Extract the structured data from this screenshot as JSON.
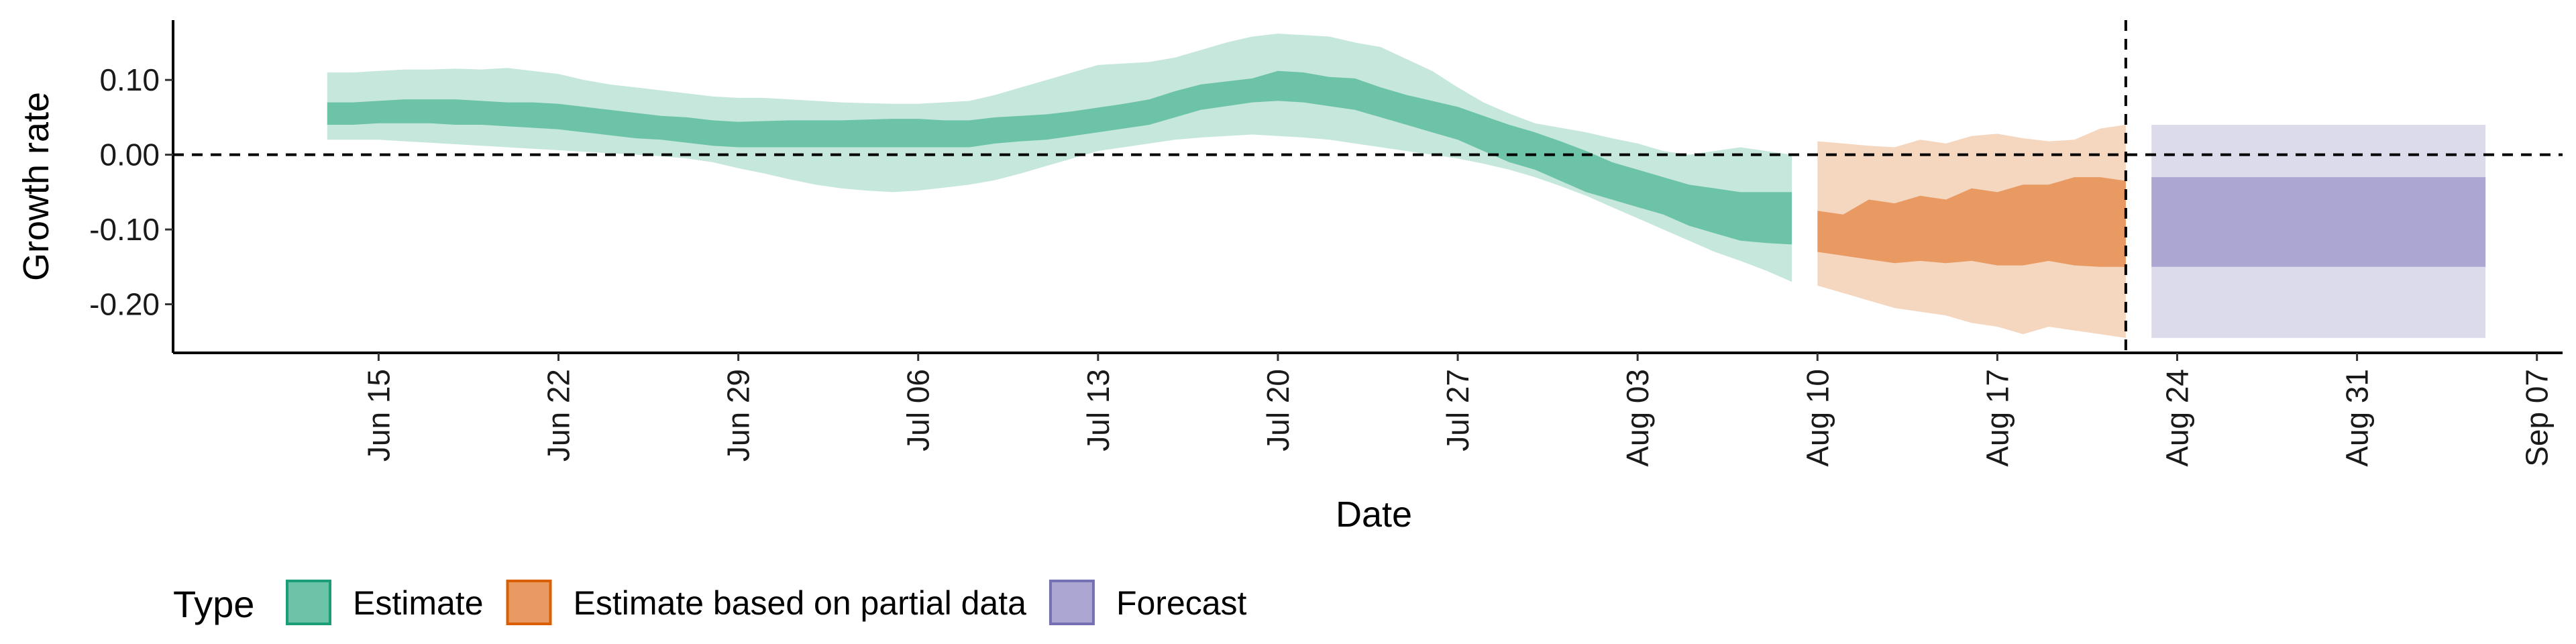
{
  "chart_data": {
    "type": "area",
    "xlabel": "Date",
    "ylabel": "Growth rate",
    "ylim": [
      -0.265,
      0.18
    ],
    "xlim": [
      "2020-06-07",
      "2020-09-08"
    ],
    "y_ticks": [
      0.1,
      0.0,
      -0.1,
      -0.2
    ],
    "y_tick_labels": [
      "0.10",
      "0.00",
      "-0.10",
      "-0.20"
    ],
    "x_ticks": [
      "2020-06-15",
      "2020-06-22",
      "2020-06-29",
      "2020-07-06",
      "2020-07-13",
      "2020-07-20",
      "2020-07-27",
      "2020-08-03",
      "2020-08-10",
      "2020-08-17",
      "2020-08-24",
      "2020-08-31",
      "2020-09-07"
    ],
    "x_tick_labels": [
      "Jun 15",
      "Jun 22",
      "Jun 29",
      "Jul 06",
      "Jul 13",
      "Jul 20",
      "Jul 27",
      "Aug 03",
      "Aug 10",
      "Aug 17",
      "Aug 24",
      "Aug 31",
      "Sep 07"
    ],
    "hline": 0.0,
    "vline": "2020-08-22",
    "grid": false,
    "legend": {
      "title": "Type",
      "position": "bottom",
      "entries": [
        {
          "label": "Estimate",
          "color": "#1b9e77"
        },
        {
          "label": "Estimate based on partial data",
          "color": "#d95f02"
        },
        {
          "label": "Forecast",
          "color": "#7570b3"
        }
      ]
    },
    "series": [
      {
        "name": "Estimate",
        "color": "#1b9e77",
        "fill": "#6cc3a7",
        "fill_outer": "#c6e7dc",
        "x": [
          "2020-06-13",
          "2020-06-14",
          "2020-06-15",
          "2020-06-16",
          "2020-06-17",
          "2020-06-18",
          "2020-06-19",
          "2020-06-20",
          "2020-06-21",
          "2020-06-22",
          "2020-06-23",
          "2020-06-24",
          "2020-06-25",
          "2020-06-26",
          "2020-06-27",
          "2020-06-28",
          "2020-06-29",
          "2020-06-30",
          "2020-07-01",
          "2020-07-02",
          "2020-07-03",
          "2020-07-04",
          "2020-07-05",
          "2020-07-06",
          "2020-07-07",
          "2020-07-08",
          "2020-07-09",
          "2020-07-10",
          "2020-07-11",
          "2020-07-12",
          "2020-07-13",
          "2020-07-14",
          "2020-07-15",
          "2020-07-16",
          "2020-07-17",
          "2020-07-18",
          "2020-07-19",
          "2020-07-20",
          "2020-07-21",
          "2020-07-22",
          "2020-07-23",
          "2020-07-24",
          "2020-07-25",
          "2020-07-26",
          "2020-07-27",
          "2020-07-28",
          "2020-07-29",
          "2020-07-30",
          "2020-07-31",
          "2020-08-01",
          "2020-08-02",
          "2020-08-03",
          "2020-08-04",
          "2020-08-05",
          "2020-08-06",
          "2020-08-07",
          "2020-08-08",
          "2020-08-09"
        ],
        "lower_outer": [
          0.02,
          0.02,
          0.02,
          0.018,
          0.016,
          0.014,
          0.012,
          0.01,
          0.008,
          0.006,
          0.004,
          0.002,
          0.0,
          -0.002,
          -0.005,
          -0.01,
          -0.018,
          -0.025,
          -0.033,
          -0.04,
          -0.045,
          -0.048,
          -0.05,
          -0.048,
          -0.044,
          -0.04,
          -0.034,
          -0.025,
          -0.015,
          -0.005,
          0.005,
          0.01,
          0.015,
          0.02,
          0.023,
          0.025,
          0.027,
          0.025,
          0.023,
          0.02,
          0.015,
          0.01,
          0.005,
          0.0,
          -0.005,
          -0.012,
          -0.02,
          -0.03,
          -0.042,
          -0.055,
          -0.07,
          -0.085,
          -0.1,
          -0.115,
          -0.13,
          -0.142,
          -0.155,
          -0.17
        ],
        "lower": [
          0.04,
          0.04,
          0.042,
          0.042,
          0.042,
          0.04,
          0.04,
          0.038,
          0.036,
          0.034,
          0.03,
          0.026,
          0.022,
          0.02,
          0.016,
          0.012,
          0.01,
          0.01,
          0.01,
          0.01,
          0.01,
          0.01,
          0.01,
          0.01,
          0.01,
          0.01,
          0.015,
          0.018,
          0.02,
          0.025,
          0.03,
          0.035,
          0.04,
          0.05,
          0.06,
          0.065,
          0.07,
          0.072,
          0.07,
          0.065,
          0.06,
          0.05,
          0.04,
          0.03,
          0.02,
          0.005,
          -0.01,
          -0.02,
          -0.035,
          -0.05,
          -0.06,
          -0.07,
          -0.08,
          -0.095,
          -0.105,
          -0.115,
          -0.118,
          -0.12
        ],
        "upper": [
          0.07,
          0.07,
          0.072,
          0.074,
          0.074,
          0.074,
          0.072,
          0.07,
          0.07,
          0.068,
          0.064,
          0.06,
          0.056,
          0.052,
          0.05,
          0.046,
          0.044,
          0.045,
          0.046,
          0.046,
          0.046,
          0.047,
          0.048,
          0.048,
          0.046,
          0.046,
          0.05,
          0.052,
          0.054,
          0.058,
          0.063,
          0.068,
          0.074,
          0.085,
          0.094,
          0.098,
          0.102,
          0.112,
          0.11,
          0.104,
          0.102,
          0.09,
          0.08,
          0.072,
          0.064,
          0.052,
          0.04,
          0.03,
          0.018,
          0.005,
          -0.01,
          -0.02,
          -0.03,
          -0.04,
          -0.045,
          -0.05,
          -0.05,
          -0.05
        ],
        "upper_outer": [
          0.11,
          0.11,
          0.112,
          0.114,
          0.114,
          0.115,
          0.114,
          0.116,
          0.112,
          0.108,
          0.1,
          0.094,
          0.09,
          0.086,
          0.082,
          0.078,
          0.076,
          0.076,
          0.074,
          0.072,
          0.07,
          0.069,
          0.068,
          0.068,
          0.07,
          0.072,
          0.08,
          0.09,
          0.1,
          0.11,
          0.12,
          0.122,
          0.124,
          0.13,
          0.14,
          0.15,
          0.158,
          0.162,
          0.16,
          0.158,
          0.15,
          0.144,
          0.128,
          0.112,
          0.09,
          0.07,
          0.055,
          0.042,
          0.036,
          0.03,
          0.022,
          0.015,
          0.005,
          0.0,
          0.005,
          0.01,
          0.005,
          0.0
        ]
      },
      {
        "name": "Estimate based on partial data",
        "color": "#d95f02",
        "fill": "#e89a62",
        "fill_outer": "#f5d6bf",
        "x": [
          "2020-08-10",
          "2020-08-11",
          "2020-08-12",
          "2020-08-13",
          "2020-08-14",
          "2020-08-15",
          "2020-08-16",
          "2020-08-17",
          "2020-08-18",
          "2020-08-19",
          "2020-08-20",
          "2020-08-21",
          "2020-08-22"
        ],
        "lower_outer": [
          -0.175,
          -0.185,
          -0.195,
          -0.205,
          -0.21,
          -0.215,
          -0.225,
          -0.23,
          -0.24,
          -0.23,
          -0.235,
          -0.24,
          -0.245
        ],
        "lower": [
          -0.13,
          -0.135,
          -0.14,
          -0.145,
          -0.142,
          -0.145,
          -0.142,
          -0.148,
          -0.148,
          -0.142,
          -0.148,
          -0.15,
          -0.15
        ],
        "upper": [
          -0.075,
          -0.08,
          -0.06,
          -0.065,
          -0.055,
          -0.06,
          -0.045,
          -0.05,
          -0.04,
          -0.04,
          -0.03,
          -0.03,
          -0.035
        ],
        "upper_outer": [
          0.018,
          0.015,
          0.012,
          0.01,
          0.02,
          0.015,
          0.025,
          0.028,
          0.022,
          0.018,
          0.02,
          0.035,
          0.04
        ]
      },
      {
        "name": "Forecast",
        "color": "#7570b3",
        "fill": "#aba6d2",
        "fill_outer": "#dcdbec",
        "x": [
          "2020-08-23",
          "2020-09-05"
        ],
        "lower_outer": [
          -0.245,
          -0.245
        ],
        "lower": [
          -0.15,
          -0.15
        ],
        "upper": [
          -0.03,
          -0.03
        ],
        "upper_outer": [
          0.04,
          0.04
        ]
      }
    ]
  }
}
